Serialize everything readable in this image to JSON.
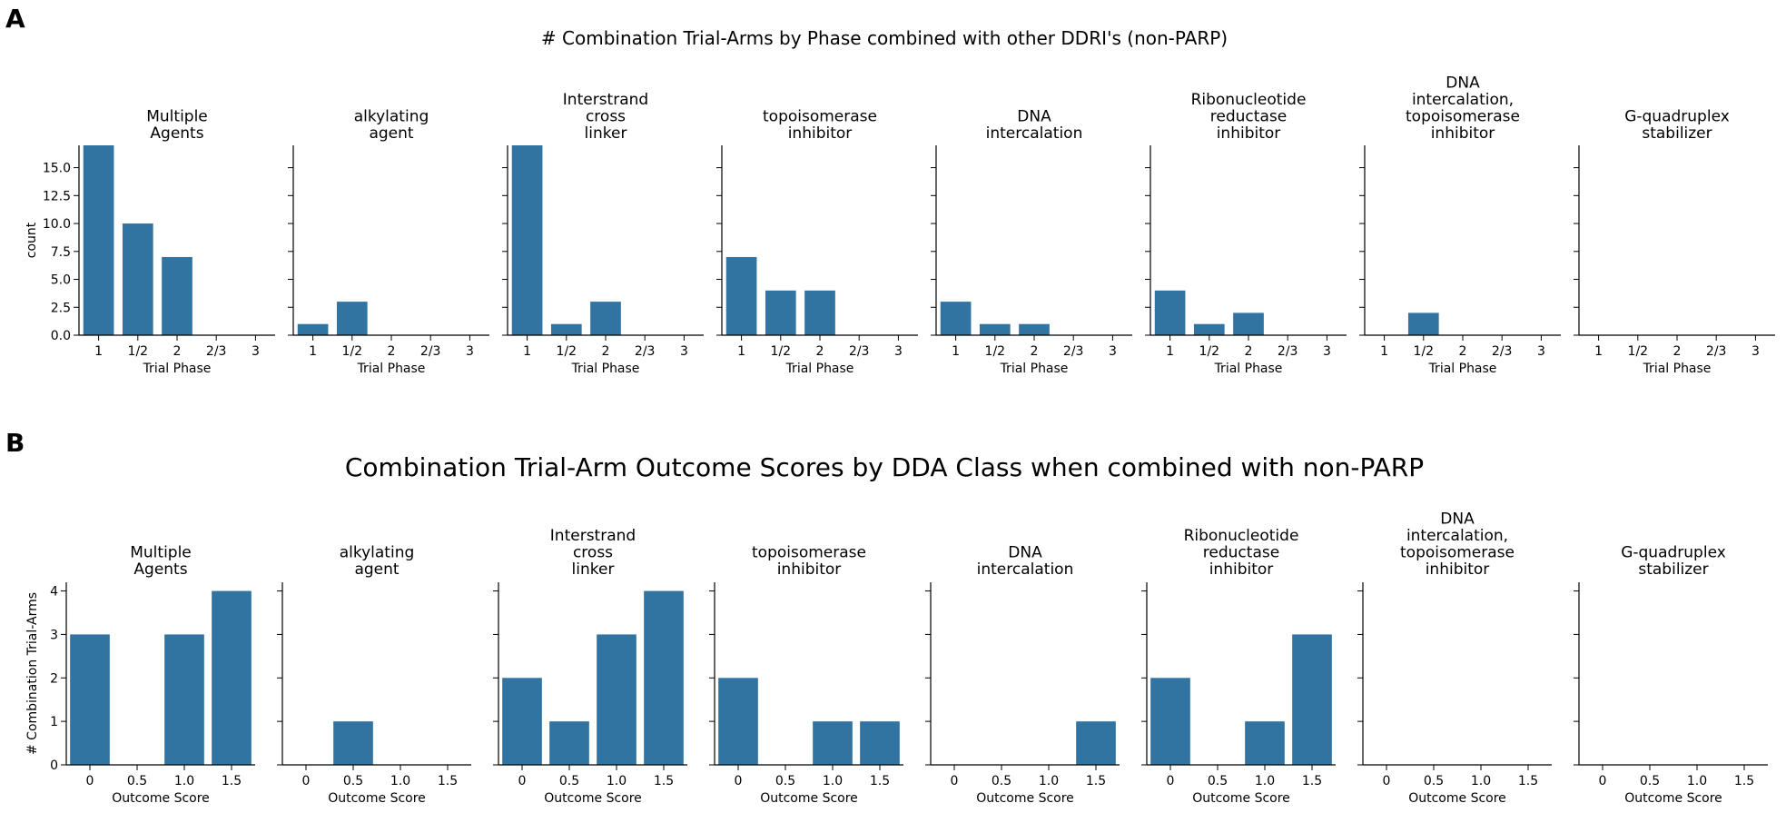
{
  "chart_data": [
    {
      "type": "bar",
      "panel_label": "A",
      "title": "# Combination Trial-Arms by Phase combined with other DDRI's (non-PARP)",
      "xlabel": "Trial Phase",
      "ylabel": "count",
      "categories": [
        "1",
        "1/2",
        "2",
        "2/3",
        "3"
      ],
      "ylim": [
        0,
        17
      ],
      "yticks": [
        "0.0",
        "2.5",
        "5.0",
        "7.5",
        "10.0",
        "12.5",
        "15.0"
      ],
      "ytick_values": [
        0,
        2.5,
        5,
        7.5,
        10,
        12.5,
        15
      ],
      "bar_color": "#3274a1",
      "facets": [
        {
          "title": [
            "Multiple",
            "Agents"
          ],
          "values": [
            17,
            10,
            7,
            0,
            0
          ]
        },
        {
          "title": [
            "alkylating",
            "agent"
          ],
          "values": [
            1,
            3,
            0,
            0,
            0
          ]
        },
        {
          "title": [
            "Interstrand",
            "cross",
            "linker"
          ],
          "values": [
            17,
            1,
            3,
            0,
            0
          ]
        },
        {
          "title": [
            "topoisomerase",
            "inhibitor"
          ],
          "values": [
            7,
            4,
            4,
            0,
            0
          ]
        },
        {
          "title": [
            "DNA",
            "intercalation"
          ],
          "values": [
            3,
            1,
            1,
            0,
            0
          ]
        },
        {
          "title": [
            "Ribonucleotide",
            "reductase",
            "inhibitor"
          ],
          "values": [
            4,
            1,
            2,
            0,
            0
          ]
        },
        {
          "title": [
            "DNA",
            "intercalation,",
            "topoisomerase",
            "inhibitor"
          ],
          "values": [
            0,
            2,
            0,
            0,
            0
          ]
        },
        {
          "title": [
            "G-quadruplex",
            "stabilizer"
          ],
          "values": [
            0,
            0,
            0,
            0,
            0
          ]
        }
      ]
    },
    {
      "type": "bar",
      "panel_label": "B",
      "title": "Combination Trial-Arm Outcome Scores by DDA Class when combined with non-PARP",
      "xlabel": "Outcome Score",
      "ylabel": "# Combination Trial-Arms",
      "categories": [
        "0",
        "0.5",
        "1.0",
        "1.5"
      ],
      "ylim": [
        0,
        4.2
      ],
      "yticks": [
        "0",
        "1",
        "2",
        "3",
        "4"
      ],
      "ytick_values": [
        0,
        1,
        2,
        3,
        4
      ],
      "bar_color": "#3274a1",
      "facets": [
        {
          "title": [
            "Multiple",
            "Agents"
          ],
          "values": [
            3,
            0,
            3,
            4
          ]
        },
        {
          "title": [
            "alkylating",
            "agent"
          ],
          "values": [
            0,
            1,
            0,
            0
          ]
        },
        {
          "title": [
            "Interstrand",
            "cross",
            "linker"
          ],
          "values": [
            2,
            1,
            3,
            4
          ]
        },
        {
          "title": [
            "topoisomerase",
            "inhibitor"
          ],
          "values": [
            2,
            0,
            1,
            1
          ]
        },
        {
          "title": [
            "DNA",
            "intercalation"
          ],
          "values": [
            0,
            0,
            0,
            1
          ]
        },
        {
          "title": [
            "Ribonucleotide",
            "reductase",
            "inhibitor"
          ],
          "values": [
            2,
            0,
            1,
            3
          ]
        },
        {
          "title": [
            "DNA",
            "intercalation,",
            "topoisomerase",
            "inhibitor"
          ],
          "values": [
            0,
            0,
            0,
            0
          ]
        },
        {
          "title": [
            "G-quadruplex",
            "stabilizer"
          ],
          "values": [
            0,
            0,
            0,
            0
          ]
        }
      ]
    }
  ]
}
